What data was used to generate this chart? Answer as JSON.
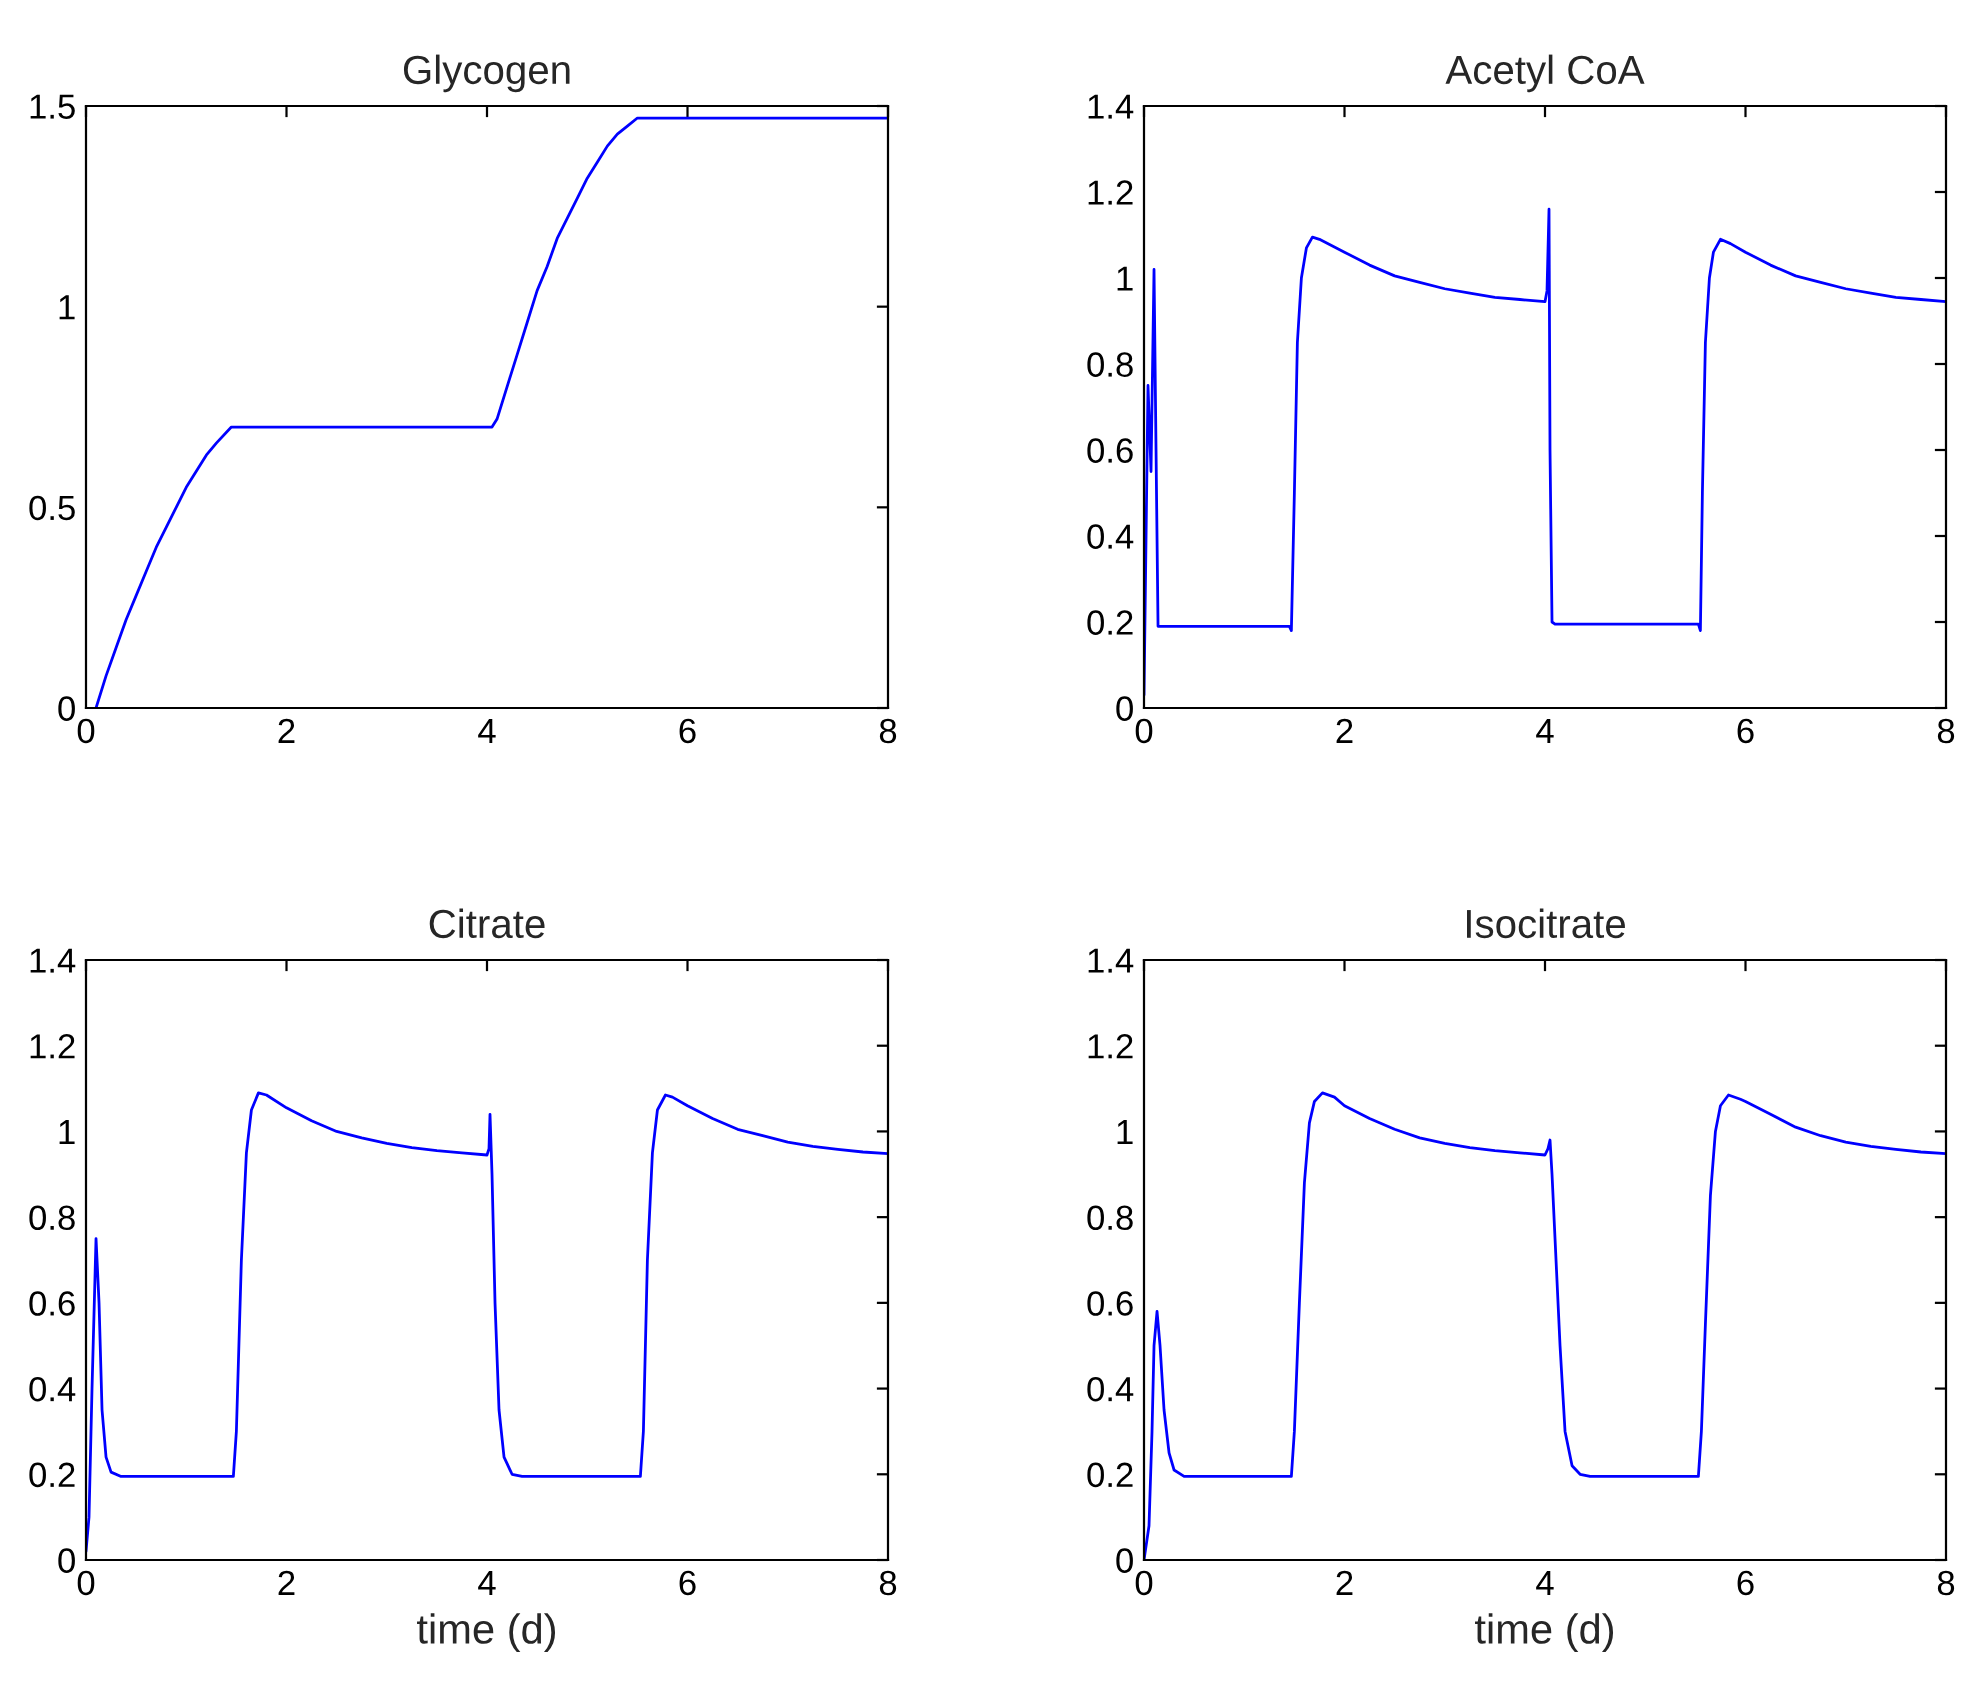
{
  "chart_data": [
    {
      "type": "line",
      "title": "Glycogen",
      "xlim": [
        0,
        8
      ],
      "xticks": [
        0,
        2,
        4,
        6,
        8
      ],
      "ylim": [
        0,
        1.5
      ],
      "yticks": [
        0,
        0.5,
        1,
        1.5
      ],
      "grid": false,
      "series": [
        {
          "color": "#0000ff",
          "x": [
            0.1,
            0.2,
            0.3,
            0.4,
            0.5,
            0.6,
            0.7,
            0.8,
            0.9,
            1.0,
            1.1,
            1.2,
            1.3,
            1.45,
            4.05,
            4.1,
            4.2,
            4.3,
            4.4,
            4.5,
            4.6,
            4.7,
            4.8,
            4.9,
            5.0,
            5.1,
            5.2,
            5.3,
            5.4,
            5.5,
            8
          ],
          "values": [
            0,
            0.08,
            0.15,
            0.22,
            0.28,
            0.34,
            0.4,
            0.45,
            0.5,
            0.55,
            0.59,
            0.63,
            0.66,
            0.7,
            0.7,
            0.72,
            0.8,
            0.88,
            0.96,
            1.04,
            1.1,
            1.17,
            1.22,
            1.27,
            1.32,
            1.36,
            1.4,
            1.43,
            1.45,
            1.47,
            1.47
          ]
        }
      ]
    },
    {
      "type": "line",
      "title": "Acetyl CoA",
      "xlim": [
        0,
        8
      ],
      "xticks": [
        0,
        2,
        4,
        6,
        8
      ],
      "ylim": [
        0,
        1.4
      ],
      "yticks": [
        0,
        0.2,
        0.4,
        0.6,
        0.8,
        1,
        1.2,
        1.4
      ],
      "grid": false,
      "series": [
        {
          "color": "#0000ff",
          "x": [
            0,
            0.04,
            0.07,
            0.1,
            0.12,
            0.14,
            1.45,
            1.47,
            1.5,
            1.53,
            1.57,
            1.62,
            1.68,
            1.75,
            2,
            2.25,
            2.5,
            2.75,
            3,
            3.25,
            3.5,
            3.75,
            4.0,
            4.02,
            4.04,
            4.05,
            4.07,
            4.1,
            5.53,
            5.55,
            5.57,
            5.6,
            5.64,
            5.68,
            5.75,
            5.85,
            6,
            6.25,
            6.5,
            6.75,
            7,
            7.25,
            7.5,
            7.75,
            8
          ],
          "values": [
            0.03,
            0.75,
            0.55,
            1.02,
            0.6,
            0.19,
            0.19,
            0.18,
            0.5,
            0.85,
            1.0,
            1.07,
            1.095,
            1.09,
            1.06,
            1.03,
            1.005,
            0.99,
            0.975,
            0.965,
            0.955,
            0.95,
            0.945,
            0.97,
            1.16,
            0.6,
            0.2,
            0.195,
            0.195,
            0.18,
            0.5,
            0.85,
            1.0,
            1.06,
            1.09,
            1.08,
            1.06,
            1.03,
            1.005,
            0.99,
            0.975,
            0.965,
            0.955,
            0.95,
            0.945
          ]
        }
      ]
    },
    {
      "type": "line",
      "title": "Citrate",
      "xlabel": "time (d)",
      "xlim": [
        0,
        8
      ],
      "xticks": [
        0,
        2,
        4,
        6,
        8
      ],
      "ylim": [
        0,
        1.4
      ],
      "yticks": [
        0,
        0.2,
        0.4,
        0.6,
        0.8,
        1,
        1.2,
        1.4
      ],
      "grid": false,
      "series": [
        {
          "color": "#0000ff",
          "x": [
            0,
            0.03,
            0.06,
            0.1,
            0.13,
            0.16,
            0.2,
            0.25,
            0.35,
            1.47,
            1.5,
            1.55,
            1.6,
            1.65,
            1.72,
            1.8,
            2,
            2.25,
            2.5,
            2.75,
            3,
            3.25,
            3.5,
            3.75,
            4.0,
            4.02,
            4.03,
            4.05,
            4.08,
            4.12,
            4.17,
            4.25,
            4.35,
            5.53,
            5.56,
            5.6,
            5.65,
            5.7,
            5.78,
            5.85,
            6,
            6.25,
            6.5,
            6.75,
            7,
            7.25,
            7.5,
            7.75,
            8
          ],
          "values": [
            0.02,
            0.1,
            0.4,
            0.75,
            0.6,
            0.35,
            0.24,
            0.205,
            0.195,
            0.195,
            0.3,
            0.7,
            0.95,
            1.05,
            1.09,
            1.085,
            1.055,
            1.025,
            1.0,
            0.985,
            0.972,
            0.962,
            0.955,
            0.95,
            0.945,
            0.96,
            1.04,
            0.9,
            0.6,
            0.35,
            0.24,
            0.2,
            0.195,
            0.195,
            0.3,
            0.7,
            0.95,
            1.05,
            1.085,
            1.08,
            1.06,
            1.03,
            1.005,
            0.99,
            0.975,
            0.965,
            0.958,
            0.952,
            0.948
          ]
        }
      ]
    },
    {
      "type": "line",
      "title": "Isocitrate",
      "xlabel": "time (d)",
      "xlim": [
        0,
        8
      ],
      "xticks": [
        0,
        2,
        4,
        6,
        8
      ],
      "ylim": [
        0,
        1.4
      ],
      "yticks": [
        0,
        0.2,
        0.4,
        0.6,
        0.8,
        1,
        1.2,
        1.4
      ],
      "grid": false,
      "series": [
        {
          "color": "#0000ff",
          "x": [
            0,
            0.05,
            0.08,
            0.1,
            0.13,
            0.16,
            0.2,
            0.25,
            0.3,
            0.4,
            1.47,
            1.5,
            1.55,
            1.6,
            1.65,
            1.7,
            1.78,
            1.9,
            2,
            2.25,
            2.5,
            2.75,
            3,
            3.25,
            3.5,
            3.75,
            4.0,
            4.03,
            4.05,
            4.07,
            4.1,
            4.15,
            4.2,
            4.27,
            4.35,
            4.45,
            5.53,
            5.56,
            5.6,
            5.65,
            5.7,
            5.75,
            5.83,
            5.95,
            6,
            6.25,
            6.5,
            6.75,
            7,
            7.25,
            7.5,
            7.75,
            8
          ],
          "values": [
            0,
            0.08,
            0.3,
            0.5,
            0.58,
            0.5,
            0.35,
            0.25,
            0.21,
            0.195,
            0.195,
            0.3,
            0.6,
            0.88,
            1.02,
            1.07,
            1.09,
            1.08,
            1.06,
            1.03,
            1.005,
            0.985,
            0.972,
            0.962,
            0.955,
            0.95,
            0.945,
            0.96,
            0.98,
            0.9,
            0.75,
            0.5,
            0.3,
            0.22,
            0.2,
            0.195,
            0.195,
            0.3,
            0.55,
            0.85,
            1.0,
            1.06,
            1.085,
            1.075,
            1.07,
            1.04,
            1.01,
            0.99,
            0.975,
            0.965,
            0.958,
            0.952,
            0.948
          ]
        }
      ]
    }
  ]
}
